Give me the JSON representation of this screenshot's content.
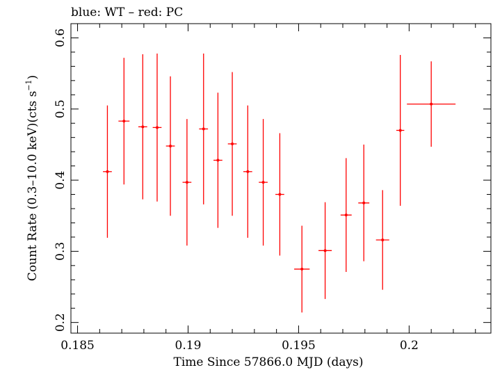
{
  "header": {
    "legend_text": "blue: WT – red: PC"
  },
  "chart_data": {
    "type": "scatter",
    "title": "blue: WT – red: PC",
    "xlabel": "Time Since 57866.0 MJD (days)",
    "ylabel_main": "Count Rate (0.3–10.0 keV)(cts s",
    "ylabel_sup": "−1",
    "ylabel_end": ")",
    "xlim": [
      0.1847,
      0.2037
    ],
    "ylim": [
      0.185,
      0.62
    ],
    "x_ticks": [
      0.185,
      0.19,
      0.195,
      0.2
    ],
    "x_tick_labels": [
      "0.185",
      "0.19",
      "0.195",
      "0.2"
    ],
    "y_ticks": [
      0.2,
      0.3,
      0.4,
      0.5,
      0.6
    ],
    "y_tick_labels": [
      "0.2",
      "0.3",
      "0.4",
      "0.5",
      "0.6"
    ],
    "grid": false,
    "series": [
      {
        "name": "PC",
        "color": "#ff0000",
        "points": [
          {
            "x": 0.18635,
            "xerr": 0.0002,
            "y": 0.412,
            "yerr": 0.093
          },
          {
            "x": 0.1871,
            "xerr": 0.00025,
            "y": 0.483,
            "yerr": 0.089
          },
          {
            "x": 0.18795,
            "xerr": 0.0002,
            "y": 0.475,
            "yerr": 0.102
          },
          {
            "x": 0.1886,
            "xerr": 0.0002,
            "y": 0.474,
            "yerr": 0.104
          },
          {
            "x": 0.1892,
            "xerr": 0.0002,
            "y": 0.448,
            "yerr": 0.098
          },
          {
            "x": 0.18995,
            "xerr": 0.0002,
            "y": 0.397,
            "yerr": 0.089
          },
          {
            "x": 0.1907,
            "xerr": 0.0002,
            "y": 0.472,
            "yerr": 0.106
          },
          {
            "x": 0.19135,
            "xerr": 0.0002,
            "y": 0.428,
            "yerr": 0.095
          },
          {
            "x": 0.192,
            "xerr": 0.0002,
            "y": 0.451,
            "yerr": 0.101
          },
          {
            "x": 0.1927,
            "xerr": 0.0002,
            "y": 0.412,
            "yerr": 0.093
          },
          {
            "x": 0.1934,
            "xerr": 0.0002,
            "y": 0.397,
            "yerr": 0.089
          },
          {
            "x": 0.19415,
            "xerr": 0.0002,
            "y": 0.38,
            "yerr": 0.086
          },
          {
            "x": 0.19515,
            "xerr": 0.00035,
            "y": 0.275,
            "yerr": 0.061
          },
          {
            "x": 0.1962,
            "xerr": 0.0003,
            "y": 0.301,
            "yerr": 0.068
          },
          {
            "x": 0.19715,
            "xerr": 0.00025,
            "y": 0.351,
            "yerr": 0.08
          },
          {
            "x": 0.19795,
            "xerr": 0.00025,
            "y": 0.368,
            "yerr": 0.082
          },
          {
            "x": 0.1988,
            "xerr": 0.0003,
            "y": 0.316,
            "yerr": 0.07
          },
          {
            "x": 0.1996,
            "xerr": 0.00018,
            "y": 0.47,
            "yerr": 0.106
          },
          {
            "x": 0.201,
            "xerr": 0.0011,
            "y": 0.507,
            "yerr": 0.06
          }
        ]
      }
    ]
  }
}
